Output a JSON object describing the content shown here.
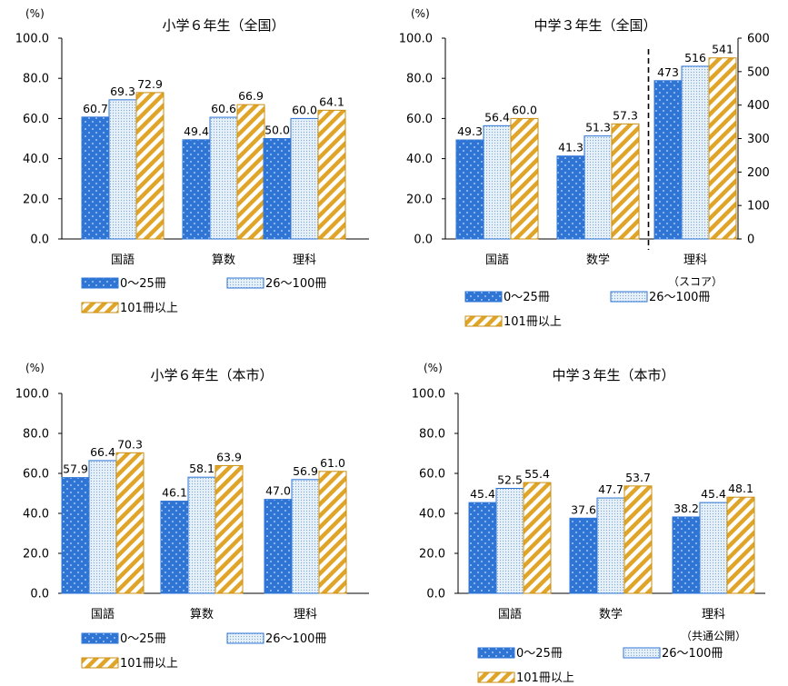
{
  "colors": {
    "blue": "#2e75d6",
    "light_blue": "#dcebf8",
    "gold": "#e0a528",
    "axis": "#000000"
  },
  "legend": [
    "0～25冊",
    "26～100冊",
    "101冊以上"
  ],
  "chart_data": [
    {
      "type": "bar",
      "title": "小学６年生（全国）",
      "unit_label": "(%)",
      "categories": [
        "国語",
        "算数",
        "理科"
      ],
      "series": [
        {
          "name": "0～25冊",
          "values": [
            60.7,
            49.4,
            50.0
          ]
        },
        {
          "name": "26～100冊",
          "values": [
            69.3,
            60.6,
            60.0
          ]
        },
        {
          "name": "101冊以上",
          "values": [
            72.9,
            66.9,
            64.1
          ]
        }
      ],
      "ylim": [
        0,
        100
      ],
      "yticks": [
        "0.0",
        "20.0",
        "40.0",
        "60.0",
        "80.0",
        "100.0"
      ],
      "legend": "bottom"
    },
    {
      "type": "bar",
      "title": "中学３年生（全国）",
      "unit_label": "(%)",
      "categories": [
        "国語",
        "数学",
        "理科"
      ],
      "category_note": "（スコア）",
      "series": [
        {
          "name": "0～25冊",
          "values": [
            49.3,
            41.3,
            473
          ]
        },
        {
          "name": "26～100冊",
          "values": [
            56.4,
            51.3,
            516
          ]
        },
        {
          "name": "101冊以上",
          "values": [
            60.0,
            57.3,
            541
          ]
        }
      ],
      "ylim": [
        0,
        100
      ],
      "yticks": [
        "0.0",
        "20.0",
        "40.0",
        "60.0",
        "80.0",
        "100.0"
      ],
      "y2lim": [
        0,
        600
      ],
      "y2ticks": [
        "0",
        "100",
        "200",
        "300",
        "400",
        "500",
        "600"
      ],
      "secondary_axis_categories": [
        "理科"
      ],
      "divider": "dashed line before 理科",
      "legend": "bottom"
    },
    {
      "type": "bar",
      "title": "小学６年生（本市）",
      "unit_label": "(%)",
      "categories": [
        "国語",
        "算数",
        "理科"
      ],
      "series": [
        {
          "name": "0～25冊",
          "values": [
            57.9,
            46.1,
            47.0
          ]
        },
        {
          "name": "26～100冊",
          "values": [
            66.4,
            58.1,
            56.9
          ]
        },
        {
          "name": "101冊以上",
          "values": [
            70.3,
            63.9,
            61.0
          ]
        }
      ],
      "ylim": [
        0,
        100
      ],
      "yticks": [
        "0.0",
        "20.0",
        "40.0",
        "60.0",
        "80.0",
        "100.0"
      ],
      "legend": "bottom"
    },
    {
      "type": "bar",
      "title": "中学３年生（本市）",
      "unit_label": "(%)",
      "categories": [
        "国語",
        "数学",
        "理科"
      ],
      "category_note": "（共通公開）",
      "series": [
        {
          "name": "0～25冊",
          "values": [
            45.4,
            37.6,
            38.2
          ]
        },
        {
          "name": "26～100冊",
          "values": [
            52.5,
            47.7,
            45.4
          ]
        },
        {
          "name": "101冊以上",
          "values": [
            55.4,
            53.7,
            48.1
          ]
        }
      ],
      "ylim": [
        0,
        100
      ],
      "yticks": [
        "0.0",
        "20.0",
        "40.0",
        "60.0",
        "80.0",
        "100.0"
      ],
      "legend": "bottom"
    }
  ]
}
